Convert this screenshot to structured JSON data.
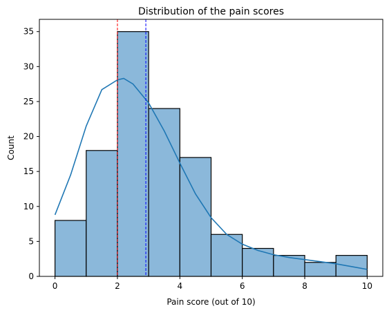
{
  "chart_data": {
    "type": "bar",
    "title": "Distribution of the pain scores",
    "xlabel": "Pain score (out of 10)",
    "ylabel": "Count",
    "xlim": [
      -0.5,
      10.5
    ],
    "ylim": [
      0,
      36.75
    ],
    "grid": false,
    "bins": [
      {
        "start": 0,
        "end": 1,
        "count": 8
      },
      {
        "start": 1,
        "end": 2,
        "count": 18
      },
      {
        "start": 2,
        "end": 3,
        "count": 35
      },
      {
        "start": 3,
        "end": 4,
        "count": 24
      },
      {
        "start": 4,
        "end": 5,
        "count": 17
      },
      {
        "start": 5,
        "end": 6,
        "count": 6
      },
      {
        "start": 6,
        "end": 7,
        "count": 4
      },
      {
        "start": 7,
        "end": 8,
        "count": 3
      },
      {
        "start": 8,
        "end": 9,
        "count": 2
      },
      {
        "start": 9,
        "end": 10,
        "count": 3
      }
    ],
    "x_ticks": [
      0,
      2,
      4,
      6,
      8,
      10
    ],
    "y_ticks": [
      0,
      5,
      10,
      15,
      20,
      25,
      30,
      35
    ],
    "kde": {
      "x": [
        0,
        0.5,
        1,
        1.5,
        2,
        2.2,
        2.5,
        3,
        3.5,
        4,
        4.5,
        5,
        5.5,
        6,
        6.5,
        7,
        7.5,
        8,
        8.5,
        9,
        9.5,
        10
      ],
      "y": [
        8.8,
        14.5,
        21.5,
        26.7,
        28.1,
        28.3,
        27.5,
        24.8,
        20.8,
        16.2,
        11.8,
        8.4,
        6.0,
        4.6,
        3.7,
        3.1,
        2.7,
        2.4,
        2.1,
        1.8,
        1.4,
        1.0
      ]
    },
    "reference_lines": [
      {
        "x": 2.0,
        "color": "#ff0000",
        "style": "dashed"
      },
      {
        "x": 2.91,
        "color": "#0000ff",
        "style": "dashed"
      }
    ],
    "colors": {
      "bar_fill": "#8bb8da",
      "bar_edge": "#000000",
      "kde_line": "#1f77b4"
    }
  }
}
